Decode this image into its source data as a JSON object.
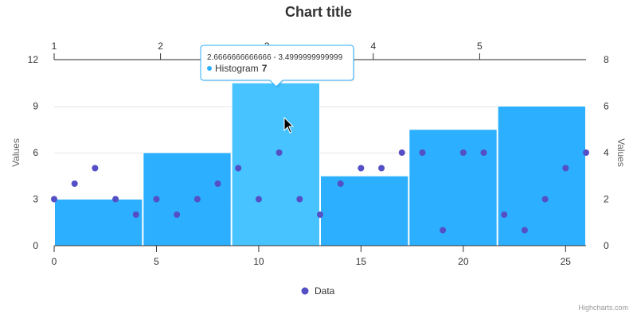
{
  "chart_data": {
    "type": "bar",
    "title": "Chart title",
    "y_axis_left": {
      "title": "Values",
      "ticks": [
        0,
        3,
        6,
        9,
        12
      ],
      "range": [
        0,
        12
      ]
    },
    "y_axis_right": {
      "title": "Values",
      "ticks": [
        0,
        2,
        4,
        6,
        8
      ],
      "range": [
        0,
        8
      ]
    },
    "x_axis_bottom": {
      "ticks": [
        0,
        5,
        10,
        15,
        20,
        25
      ],
      "range": [
        0,
        26
      ]
    },
    "x_axis_top": {
      "ticks": [
        1,
        2,
        3,
        4,
        5
      ],
      "range": [
        1,
        6
      ]
    },
    "histogram": {
      "name": "Histogram",
      "axis": "top/right",
      "bins": [
        {
          "x1": 1,
          "x2": 1.8333333333,
          "y": 2
        },
        {
          "x1": 1.8333333333,
          "x2": 2.6666666667,
          "y": 4
        },
        {
          "x1": 2.6666666667,
          "x2": 3.4999999999,
          "y": 7
        },
        {
          "x1": 3.5,
          "x2": 4.3333333333,
          "y": 3
        },
        {
          "x1": 4.3333333333,
          "x2": 5.1666666667,
          "y": 5
        },
        {
          "x1": 5.1666666667,
          "x2": 6,
          "y": 6
        }
      ],
      "color": "#2caffe",
      "hover_color": "#47c3ff"
    },
    "scatter": {
      "name": "Data",
      "axis": "bottom/left",
      "color": "#544fc5",
      "x": [
        0,
        1,
        2,
        3,
        4,
        5,
        6,
        7,
        8,
        9,
        10,
        11,
        12,
        13,
        14,
        15,
        16,
        17,
        18,
        19,
        20,
        21,
        22,
        23,
        24,
        25,
        26
      ],
      "y": [
        3,
        4,
        5,
        3,
        2,
        3,
        2,
        3,
        4,
        5,
        3,
        6,
        3,
        2,
        4,
        5,
        5,
        6,
        6,
        1,
        6,
        6,
        2,
        1,
        3,
        5,
        6
      ]
    },
    "legend": {
      "position": "bottom-center",
      "items": [
        "Data"
      ]
    },
    "grid": true
  },
  "tooltip": {
    "range_text": "2.6666666666666 - 3.4999999999999",
    "series_label": "Histogram",
    "value_text": "7"
  },
  "credits": "Highcharts.com"
}
